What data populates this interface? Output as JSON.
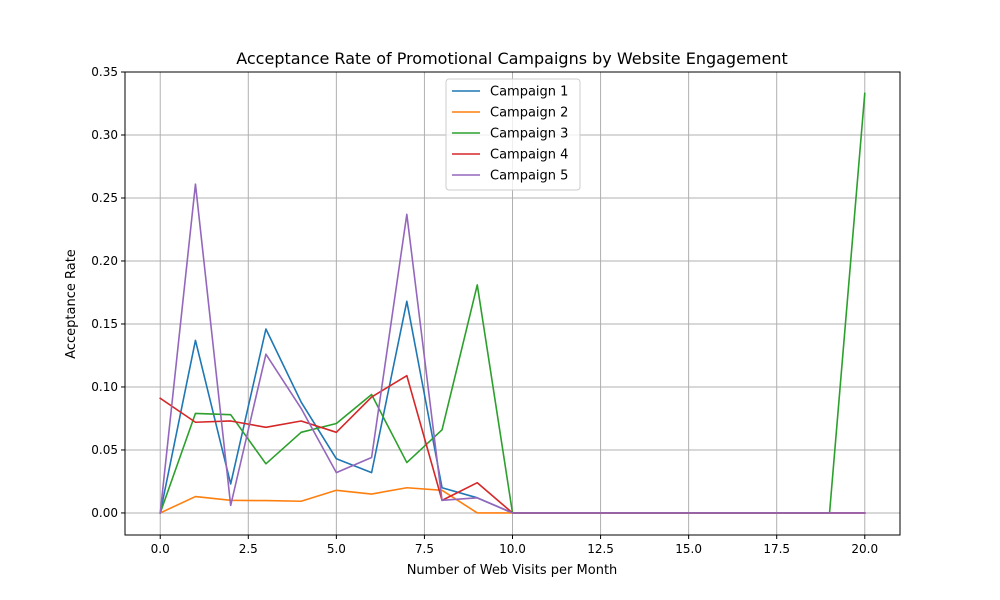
{
  "chart_data": {
    "type": "line",
    "title": "Acceptance Rate of Promotional Campaigns by Website Engagement",
    "xlabel": "Number of Web Visits per Month",
    "ylabel": "Acceptance Rate",
    "xlim": [
      -1,
      21
    ],
    "ylim": [
      -0.0175,
      0.35
    ],
    "xticks": [
      0.0,
      2.5,
      5.0,
      7.5,
      10.0,
      12.5,
      15.0,
      17.5,
      20.0
    ],
    "xtick_labels": [
      "0.0",
      "2.5",
      "5.0",
      "7.5",
      "10.0",
      "12.5",
      "15.0",
      "17.5",
      "20.0"
    ],
    "yticks": [
      0.0,
      0.05,
      0.1,
      0.15,
      0.2,
      0.25,
      0.3,
      0.35
    ],
    "ytick_labels": [
      "0.00",
      "0.05",
      "0.10",
      "0.15",
      "0.20",
      "0.25",
      "0.30",
      "0.35"
    ],
    "grid": true,
    "legend_position": "top-center",
    "x": [
      0,
      1,
      2,
      3,
      4,
      5,
      6,
      7,
      8,
      9,
      10,
      13,
      14,
      17,
      19,
      20
    ],
    "series": [
      {
        "name": "Campaign 1",
        "color": "#1f77b4",
        "values": [
          0.0,
          0.137,
          0.023,
          0.146,
          0.088,
          0.043,
          0.032,
          0.168,
          0.02,
          0.012,
          0.0,
          0.0,
          0.0,
          0.0,
          0.0,
          0.0
        ]
      },
      {
        "name": "Campaign 2",
        "color": "#ff7f0e",
        "values": [
          0.0,
          0.013,
          0.01,
          0.0098,
          0.0093,
          0.018,
          0.015,
          0.02,
          0.018,
          0.0,
          0.0,
          0.0,
          0.0,
          0.0,
          0.0,
          0.0
        ]
      },
      {
        "name": "Campaign 3",
        "color": "#2ca02c",
        "values": [
          0.0,
          0.079,
          0.078,
          0.039,
          0.064,
          0.071,
          0.094,
          0.04,
          0.066,
          0.181,
          0.0,
          0.0,
          0.0,
          0.0,
          0.0,
          0.333
        ]
      },
      {
        "name": "Campaign 4",
        "color": "#d62728",
        "values": [
          0.091,
          0.072,
          0.073,
          0.068,
          0.073,
          0.064,
          0.092,
          0.109,
          0.01,
          0.024,
          0.0,
          0.0,
          0.0,
          0.0,
          0.0,
          0.0
        ]
      },
      {
        "name": "Campaign 5",
        "color": "#9467bd",
        "values": [
          0.0,
          0.261,
          0.006,
          0.126,
          0.083,
          0.032,
          0.044,
          0.237,
          0.01,
          0.012,
          0.0,
          0.0,
          0.0,
          0.0,
          0.0,
          0.0
        ]
      }
    ]
  }
}
